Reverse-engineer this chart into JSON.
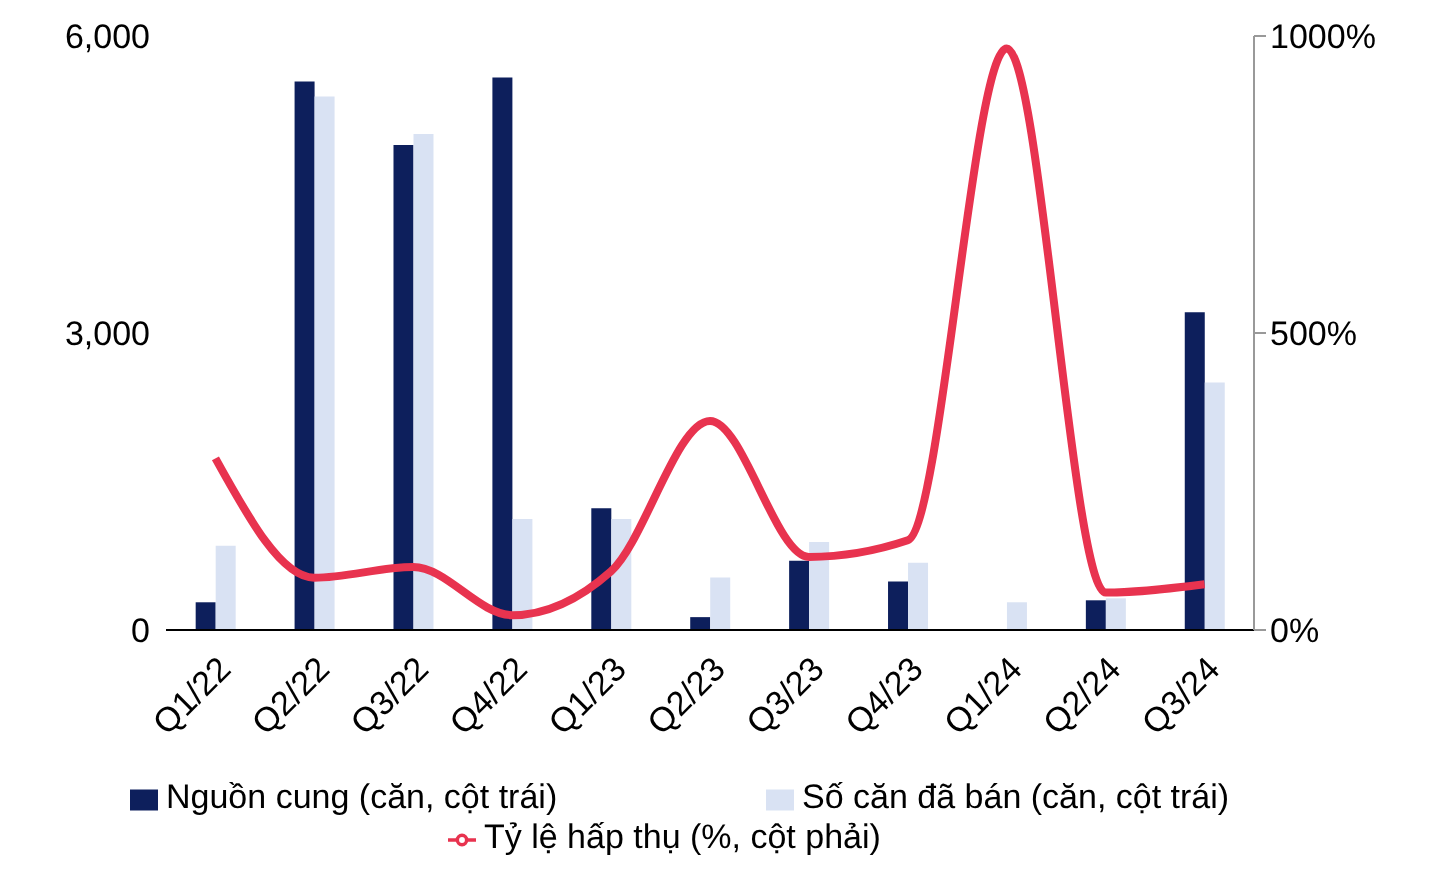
{
  "chart_data": {
    "type": "bar",
    "categories": [
      "Q1/22",
      "Q2/22",
      "Q3/22",
      "Q4/22",
      "Q1/23",
      "Q2/23",
      "Q3/23",
      "Q4/23",
      "Q1/24",
      "Q2/24",
      "Q3/24"
    ],
    "series": [
      {
        "name": "Nguồn cung (căn, cột trái)",
        "color": "#0d1f5c",
        "values": [
          280,
          5540,
          4900,
          5580,
          1230,
          130,
          700,
          490,
          null,
          300,
          3210
        ]
      },
      {
        "name": "Số căn đã bán (căn, cột trái)",
        "color": "#d9e2f3",
        "values": [
          850,
          5390,
          5010,
          1120,
          1120,
          530,
          890,
          680,
          280,
          320,
          2500
        ]
      },
      {
        "name": "Tỷ lệ hấp thụ (%, cột phải)",
        "type": "line",
        "axis": "y2",
        "color": "#e8334f",
        "values": [
          289,
          88,
          106,
          25,
          99,
          352,
          123,
          151,
          979,
          63,
          77
        ]
      }
    ],
    "ylim": [
      0,
      6000
    ],
    "yticks": [
      0,
      {
        "value": 3000,
        "label": "3,000"
      },
      {
        "value": 6000,
        "label": "6,000"
      }
    ],
    "y2lim": [
      0,
      1000
    ],
    "y2ticks": [
      {
        "value": 0,
        "label": "0%"
      },
      {
        "value": 500,
        "label": "500%"
      },
      {
        "value": 1000,
        "label": "1000%"
      }
    ],
    "grid": false,
    "legend": "bottom",
    "marker": "none",
    "line_style": "solid"
  }
}
